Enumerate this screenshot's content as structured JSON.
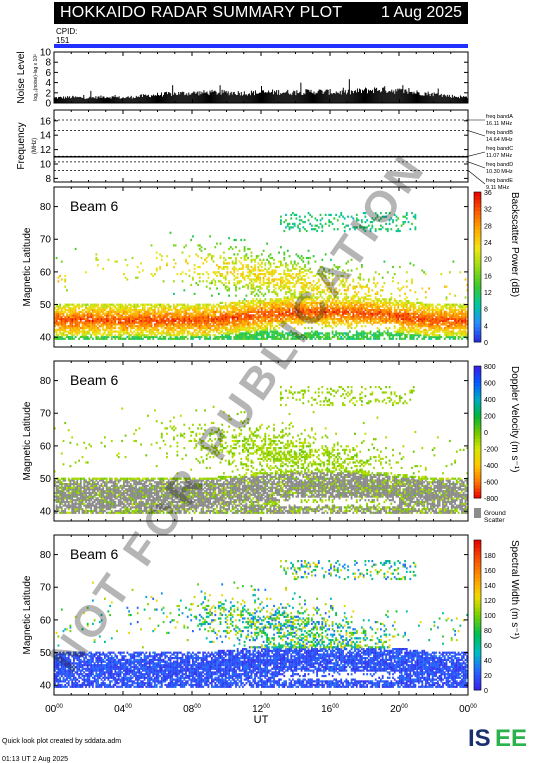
{
  "header": {
    "title": "HOKKAIDO RADAR SUMMARY PLOT",
    "date": "1 Aug 2025",
    "cpid_label": "CPID:",
    "cpid_value": "151"
  },
  "footer": {
    "credit": "Quick look plot created by sddata.adm",
    "timestamp": "01:13 UT  2 Aug 2025",
    "logo": "ISEE"
  },
  "watermark": "NOT FOR PUBLICATION",
  "colors": {
    "background": "#ffffff",
    "title_bar": "#000000",
    "cpid_line": "#2030ff",
    "ground_scatter": "#8c8c8c",
    "logo_green": "#2bb24c",
    "logo_navy": "#1a2f6e"
  },
  "chart_data": [
    {
      "type": "bar",
      "name": "noise",
      "ylabel": "Noise Level",
      "ylabel_sub": "log₁₀(noise)-lag x 10²",
      "ylim": [
        0,
        10
      ],
      "yticks": [
        "0",
        "2",
        "4",
        "6",
        "8",
        "10"
      ],
      "x_hours": [
        0,
        1,
        2,
        3,
        4,
        5,
        6,
        7,
        8,
        9,
        10,
        11,
        12,
        13,
        14,
        15,
        16,
        17,
        18,
        19,
        20,
        21,
        22,
        23,
        24
      ],
      "values": [
        1.0,
        1.1,
        1.0,
        1.2,
        1.0,
        1.3,
        1.6,
        1.8,
        1.9,
        2.0,
        2.0,
        1.9,
        2.0,
        2.1,
        2.0,
        2.2,
        2.1,
        2.0,
        2.4,
        2.6,
        2.3,
        2.0,
        1.7,
        1.3,
        1.1
      ]
    },
    {
      "type": "line",
      "name": "frequency",
      "ylabel": "Frequency",
      "ylabel_sub": "(MHz)",
      "ylim": [
        7.5,
        17.5
      ],
      "yticks": [
        "8",
        "10",
        "12",
        "14",
        "16"
      ],
      "series": [
        {
          "values": [
            11.0,
            11.0
          ]
        }
      ],
      "freq_bands": [
        {
          "label": "freq bandA",
          "value": "16.11 MHz",
          "mhz": 16.11
        },
        {
          "label": "freq bandB",
          "value": "14.64 MHz",
          "mhz": 14.64
        },
        {
          "label": "freq bandC",
          "value": "11.07 MHz",
          "mhz": 11.07
        },
        {
          "label": "freq bandD",
          "value": "10.30 MHz",
          "mhz": 10.3
        },
        {
          "label": "freq bandE",
          "value": "9.11 MHz",
          "mhz": 9.11
        }
      ]
    },
    {
      "type": "heatmap",
      "name": "power",
      "ylabel": "Magnetic Latitude",
      "ylim": [
        37,
        86
      ],
      "yticks": [
        "40",
        "50",
        "60",
        "70",
        "80"
      ],
      "annotation": "Beam  6",
      "colorbar_label": "Backscatter Power (dB)",
      "colorbar_range": [
        0,
        36
      ],
      "colorbar_ticks": [
        "0",
        "4",
        "8",
        "12",
        "16",
        "20",
        "24",
        "28",
        "32",
        "36"
      ]
    },
    {
      "type": "heatmap",
      "name": "velocity",
      "ylabel": "Magnetic Latitude",
      "ylim": [
        37,
        86
      ],
      "yticks": [
        "40",
        "50",
        "60",
        "70",
        "80"
      ],
      "annotation": "Beam  6",
      "colorbar_label": "Doppler Velocity (m s⁻¹)",
      "colorbar_range": [
        -800,
        800
      ],
      "colorbar_ticks": [
        "-800",
        "-600",
        "-400",
        "-200",
        "0",
        "200",
        "400",
        "600",
        "800"
      ],
      "ground_scatter_label": [
        "Ground",
        "Scatter"
      ]
    },
    {
      "type": "heatmap",
      "name": "width",
      "ylabel": "Magnetic Latitude",
      "ylim": [
        37,
        86
      ],
      "yticks": [
        "40",
        "50",
        "60",
        "70",
        "80"
      ],
      "annotation": "Beam  6",
      "colorbar_label": "Spectral Width (m s⁻¹)",
      "colorbar_range": [
        0,
        200
      ],
      "colorbar_ticks": [
        "0",
        "20",
        "40",
        "60",
        "80",
        "100",
        "120",
        "140",
        "160",
        "180"
      ]
    }
  ],
  "xaxis": {
    "label": "UT",
    "range_hours": [
      0,
      24
    ],
    "ticks": [
      {
        "hour": "00",
        "min": "00"
      },
      {
        "hour": "04",
        "min": "00"
      },
      {
        "hour": "08",
        "min": "00"
      },
      {
        "hour": "12",
        "min": "00"
      },
      {
        "hour": "16",
        "min": "00"
      },
      {
        "hour": "20",
        "min": "00"
      },
      {
        "hour": "00",
        "min": "00"
      }
    ]
  }
}
